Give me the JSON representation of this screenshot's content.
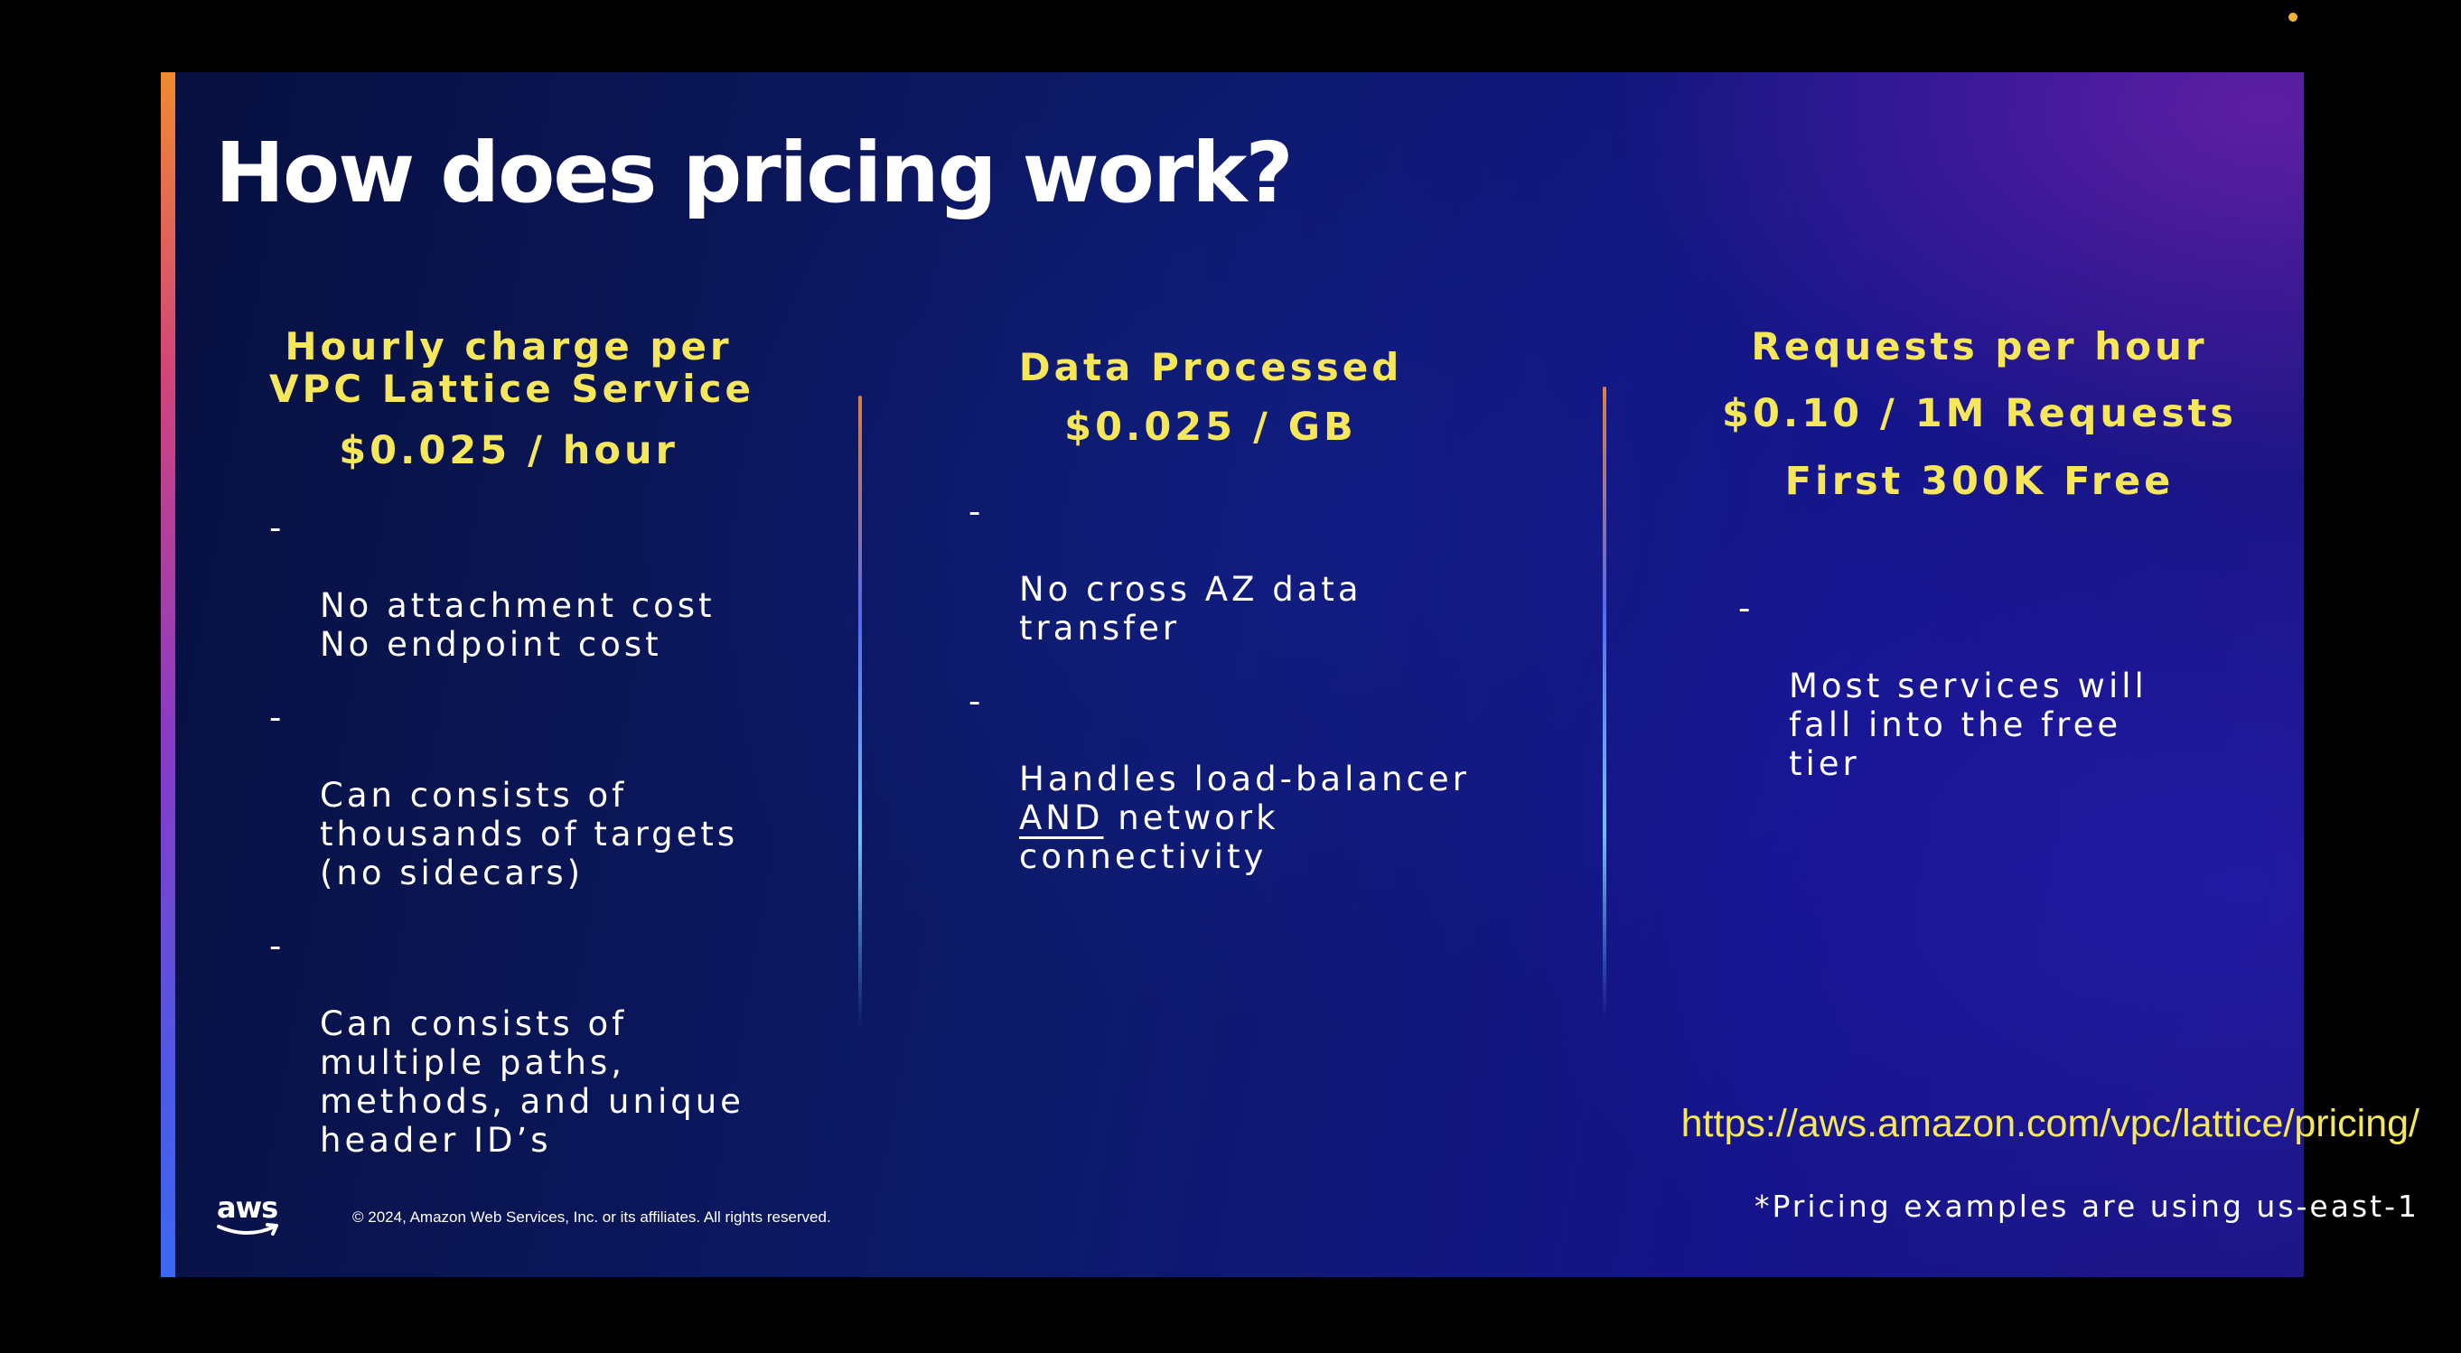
{
  "slide": {
    "title": "How does pricing work?",
    "columns": [
      {
        "heading_lines": [
          "Hourly charge per",
          "VPC Lattice Service",
          "$0.025 / hour"
        ],
        "bullets": [
          {
            "text": "No attachment cost\nNo endpoint cost"
          },
          {
            "text": "Can consists of\nthousands of targets\n(no sidecars)"
          },
          {
            "text": "Can consists of\nmultiple paths,\nmethods, and unique\nheader ID’s"
          }
        ]
      },
      {
        "heading_lines": [
          "Data Processed",
          "$0.025 / GB"
        ],
        "bullets": [
          {
            "text": "No cross AZ data\ntransfer"
          },
          {
            "text_before": "Handles load-balancer\n",
            "emphasis": "AND",
            "text_after": " network\nconnectivity"
          }
        ]
      },
      {
        "heading_lines": [
          "Requests per hour",
          "$0.10 / 1M Requests",
          "First 300K Free"
        ],
        "bullets": [
          {
            "text": "Most services will\nfall into the free\ntier"
          }
        ]
      }
    ],
    "bullet_marker": "-",
    "pricing_link": "https://aws.amazon.com/vpc/lattice/pricing/",
    "pricing_note": "*Pricing examples are using us-east-1",
    "copyright": "© 2024, Amazon Web Services, Inc. or its affiliates. All rights reserved.",
    "logo_text": "aws"
  },
  "colors": {
    "heading_yellow": "#f6e75a",
    "body_text": "#ffffff",
    "accent_orange": "#f08a30",
    "accent_purple": "#8a3ac6",
    "accent_blue": "#3b68f0",
    "status_dot": "#f2b233"
  },
  "icons": {
    "logo": "aws-smile-logo"
  }
}
